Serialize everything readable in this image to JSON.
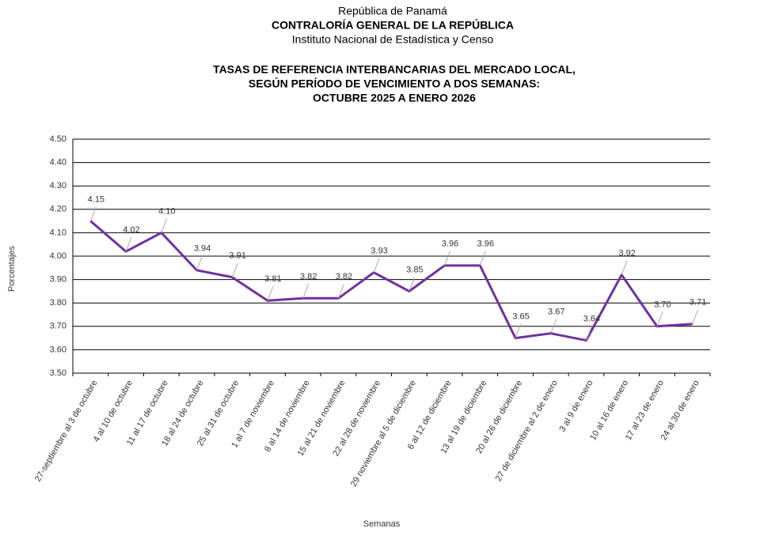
{
  "chart_data": {
    "type": "line",
    "header": [
      "República de Panamá",
      "CONTRALORÍA GENERAL DE LA REPÚBLICA",
      "Instituto  Nacional de Estadística y Censo"
    ],
    "title": [
      "TASAS DE REFERENCIA INTERBANCARIAS DEL MERCADO LOCAL,",
      "SEGÚN PERÍODO DE VENCIMIENTO A DOS SEMANAS:",
      "OCTUBRE 2025 A ENERO 2026"
    ],
    "x_label": "Semanas",
    "y_label": "Porcentajes",
    "categories": [
      "27-septiembre al 3 de octubre",
      "4 al 10 de octubre",
      "11 al 17 de octubre",
      "18 al 24 de octubre",
      "25 al 31 de octubre",
      "1 al 7 de noviembre",
      "8 al 14 de noviembre",
      "15 al 21 de noviembre",
      "22 al 28 de noviembre",
      "29 noviembre al 5 de diciembre",
      "6 al 12 de diciembre",
      "13 al 19 de diciembre",
      "20 al 26 de diciembre",
      "27 de diciembre al 2 de enero",
      "3 al 9 de enero",
      "10 al 16 de enero",
      "17 al 23 de enero",
      "24 al 30 de enero"
    ],
    "series": [
      {
        "color": "#7030a0",
        "values": [
          4.15,
          4.02,
          4.1,
          3.94,
          3.91,
          3.81,
          3.82,
          3.82,
          3.93,
          3.85,
          3.96,
          3.96,
          3.65,
          3.67,
          3.64,
          3.92,
          3.7,
          3.71
        ],
        "value_labels": [
          "4.15",
          "4.02",
          "4.10",
          "3.94",
          "3.91",
          "3.81",
          "3.82",
          "3.82",
          "3.93",
          "3.85",
          "3.96",
          "3.96",
          "3.65",
          "3.67",
          "3.64",
          "3.92",
          "3.70",
          "3.71"
        ]
      }
    ],
    "ylim": [
      3.5,
      4.5
    ],
    "yticks": [
      {
        "value": 3.5,
        "label": "3.50"
      },
      {
        "value": 3.6,
        "label": "3.60"
      },
      {
        "value": 3.7,
        "label": "3.70"
      },
      {
        "value": 3.8,
        "label": "3.80"
      },
      {
        "value": 3.9,
        "label": "3.90"
      },
      {
        "value": 4.0,
        "label": "4.00"
      },
      {
        "value": 4.1,
        "label": "4.10"
      },
      {
        "value": 4.2,
        "label": "4.20"
      },
      {
        "value": 4.3,
        "label": "4.30"
      },
      {
        "value": 4.4,
        "label": "4.40"
      },
      {
        "value": 4.5,
        "label": "4.50"
      }
    ],
    "grid": true
  }
}
